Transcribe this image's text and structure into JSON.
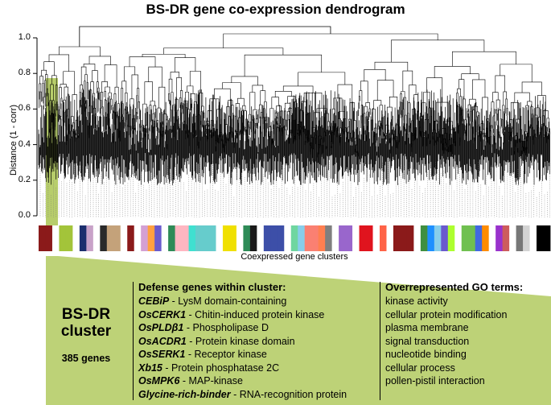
{
  "title": "BS-DR gene co-expression dendrogram",
  "y_axis": {
    "label": "Distance (1 - corr)",
    "ticks": [
      "0.0",
      "0.2",
      "0.4",
      "0.6",
      "0.8",
      "1.0"
    ]
  },
  "x_axis": {
    "label": "Coexpressed gene clusters"
  },
  "highlight_color": "#b6cd68",
  "cluster_box": {
    "name": "BS-DR\ncluster",
    "gene_count": "385 genes"
  },
  "defense_genes": {
    "heading": "Defense genes within cluster:",
    "items": [
      {
        "gene": "CEBiP",
        "desc": " - LysM domain-containing"
      },
      {
        "gene": "OsCERK1",
        "desc": " - Chitin-induced protein kinase"
      },
      {
        "gene": "OsPLDβ1",
        "desc": " - Phospholipase D"
      },
      {
        "gene": "OsACDR1",
        "desc": " - Protein kinase domain"
      },
      {
        "gene": "OsSERK1",
        "desc": " - Receptor kinase"
      },
      {
        "gene": "Xb15",
        "desc": " - Protein phosphatase 2C"
      },
      {
        "gene": "OsMPK6",
        "desc": " - MAP-kinase"
      },
      {
        "gene": "Glycine-rich-binder",
        "desc": " - RNA-recognition protein"
      }
    ]
  },
  "go_terms": {
    "heading": "Overrepresented GO terms:",
    "items": [
      "kinase activity",
      "cellular protein modification",
      "plasma membrane",
      "signal transduction",
      "nucleotide binding",
      "cellular process",
      "pollen-pistil interaction"
    ]
  },
  "cluster_colors": [
    "#8b1a1a",
    "#8b1a1a",
    "#ffffff",
    "#a3c43a",
    "#a3c43a",
    "#ffffff",
    "#1c2f6e",
    "#c8a2c8",
    "#ffffff",
    "#2a2a2a",
    "#c4a27a",
    "#c4a27a",
    "#ffffff",
    "#8b1a1a",
    "#ffffff",
    "#d4a0d4",
    "#ffa040",
    "#6a5acd",
    "#ffffff",
    "#2e8b57",
    "#ffb6c1",
    "#ffb6c1",
    "#40e0d0",
    "#66cccc",
    "#66cccc",
    "#66cccc",
    "#ffffff",
    "#f0e000",
    "#f0e000",
    "#ffffff",
    "#2e8b57",
    "#1a1a1a",
    "#ffffff",
    "#3d4fa8",
    "#3d4fa8",
    "#3d4fa8",
    "#ffffff",
    "#6fd6a0",
    "#87ceeb",
    "#fa8072",
    "#fa8072",
    "#ff7f50",
    "#7f7f7f",
    "#ffffff",
    "#9966cc",
    "#9966cc",
    "#ffffff",
    "#e0141e",
    "#e0141e",
    "#ffffff",
    "#ff6347",
    "#ffffff",
    "#8b1a1a",
    "#8b1a1a",
    "#8b1a1a",
    "#ffffff",
    "#3f8f3f",
    "#1e90ff",
    "#87ceeb",
    "#6a5acd",
    "#adff2f",
    "#ffffff",
    "#70c050",
    "#70c050",
    "#4169e1",
    "#ff8c00",
    "#ffffff",
    "#9932cc",
    "#cd5c5c",
    "#ffffff",
    "#777777",
    "#d3d3d3",
    "#ffffff",
    "#000000",
    "#000000"
  ]
}
